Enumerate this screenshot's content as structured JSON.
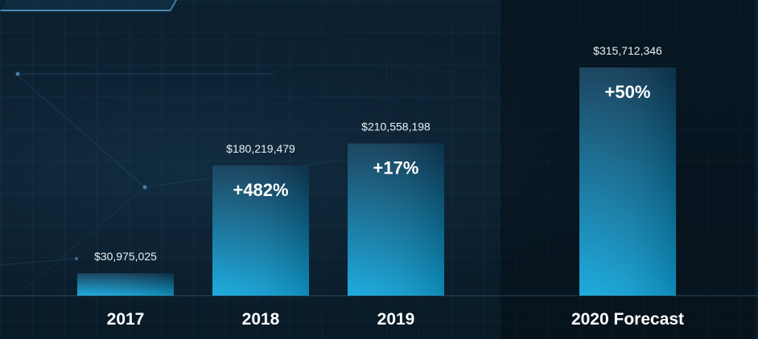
{
  "colors": {
    "bar_top": "#0e3a57",
    "bar_bottom": "#0fa6dc",
    "background": "#0a1d2b"
  },
  "chart_data": {
    "type": "bar",
    "title": "",
    "xlabel": "",
    "ylabel": "",
    "categories": [
      "2017",
      "2018",
      "2019",
      "2020 Forecast"
    ],
    "values": [
      30975025,
      180219479,
      210558198,
      315712346
    ],
    "value_labels": [
      "$30,975,025",
      "$180,219,479",
      "$210,558,198",
      "$315,712,346"
    ],
    "growth_labels": [
      "",
      "+482%",
      "+17%",
      "+50%"
    ],
    "ylim": [
      0,
      350000000
    ],
    "grid": false
  }
}
